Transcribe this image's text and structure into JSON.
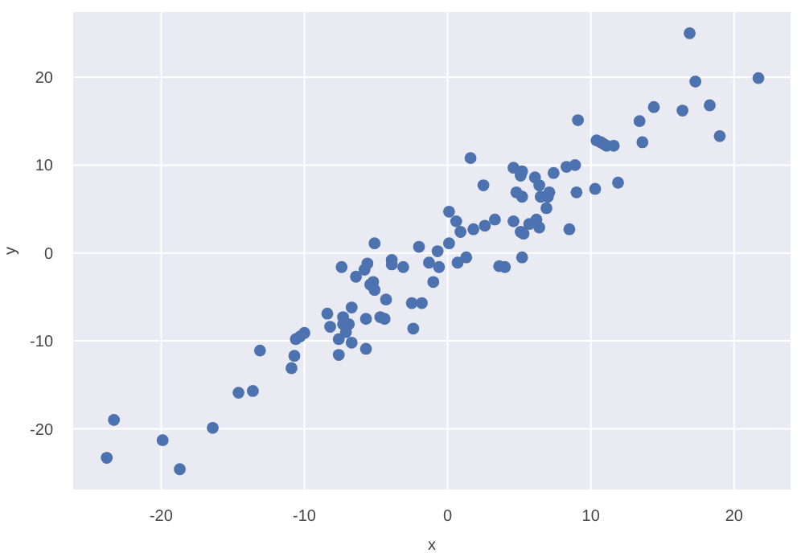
{
  "chart_data": {
    "type": "scatter",
    "xlabel": "x",
    "ylabel": "y",
    "xlim": [
      -26.2,
      24
    ],
    "ylim": [
      -27,
      27.5
    ],
    "xticks": [
      -20,
      -10,
      0,
      10,
      20
    ],
    "yticks": [
      -20,
      -10,
      0,
      10,
      20
    ],
    "grid": true,
    "marker": "circle",
    "series": [
      {
        "color": "#4c72b0",
        "x": [
          -23.8,
          -23.3,
          -19.9,
          -18.7,
          -16.4,
          -14.6,
          -13.6,
          -13.1,
          -10.9,
          -10.7,
          -10.6,
          -10.3,
          -10.0,
          -8.4,
          -8.2,
          -7.6,
          -7.6,
          -7.4,
          -7.3,
          -7.3,
          -7.1,
          -6.9,
          -6.7,
          -6.7,
          -6.4,
          -5.8,
          -5.6,
          -5.7,
          -5.7,
          -5.4,
          -5.2,
          -5.1,
          -5.1,
          -4.7,
          -4.4,
          -4.3,
          -3.9,
          -3.9,
          -3.1,
          -2.5,
          -2.4,
          -2.0,
          -1.8,
          -1.3,
          -1.0,
          -0.7,
          -0.6,
          0.1,
          0.1,
          0.6,
          0.7,
          0.9,
          1.3,
          1.6,
          1.8,
          2.5,
          2.6,
          3.3,
          3.6,
          4.0,
          4.6,
          4.6,
          4.8,
          5.1,
          5.1,
          5.2,
          5.2,
          5.3,
          5.2,
          5.7,
          6.1,
          6.2,
          6.4,
          6.4,
          6.5,
          6.9,
          7.0,
          7.1,
          7.4,
          8.3,
          8.5,
          8.9,
          9.0,
          9.1,
          10.3,
          10.4,
          10.7,
          10.9,
          11.1,
          11.6,
          11.9,
          13.4,
          13.6,
          14.4,
          16.4,
          16.9,
          17.3,
          18.3,
          19.0,
          21.7
        ],
        "values": [
          -23.3,
          -19.0,
          -21.3,
          -24.6,
          -19.9,
          -15.9,
          -15.7,
          -11.1,
          -13.1,
          -11.7,
          -9.8,
          -9.5,
          -9.1,
          -6.9,
          -8.4,
          -11.6,
          -9.8,
          -1.6,
          -7.3,
          -8.1,
          -9.0,
          -8.1,
          -10.2,
          -6.2,
          -2.7,
          -1.9,
          -1.2,
          -7.5,
          -10.9,
          -3.6,
          -3.3,
          -4.2,
          1.1,
          -7.3,
          -7.5,
          -5.3,
          -0.8,
          -1.3,
          -1.6,
          -5.7,
          -8.6,
          0.7,
          -5.7,
          -1.1,
          -3.3,
          0.2,
          -1.6,
          4.7,
          1.1,
          3.6,
          -1.1,
          2.4,
          -0.5,
          10.8,
          2.7,
          7.7,
          3.1,
          3.8,
          -1.5,
          -1.6,
          3.6,
          9.7,
          6.9,
          8.8,
          2.4,
          9.3,
          6.4,
          2.2,
          -0.5,
          3.3,
          8.6,
          3.8,
          2.9,
          7.7,
          6.4,
          5.1,
          6.4,
          6.9,
          9.1,
          9.8,
          2.7,
          10.0,
          6.9,
          15.1,
          7.3,
          12.8,
          12.6,
          12.4,
          12.2,
          12.2,
          8.0,
          15.0,
          12.6,
          16.6,
          16.2,
          25.0,
          19.5,
          16.8,
          13.3,
          19.9
        ]
      }
    ]
  }
}
